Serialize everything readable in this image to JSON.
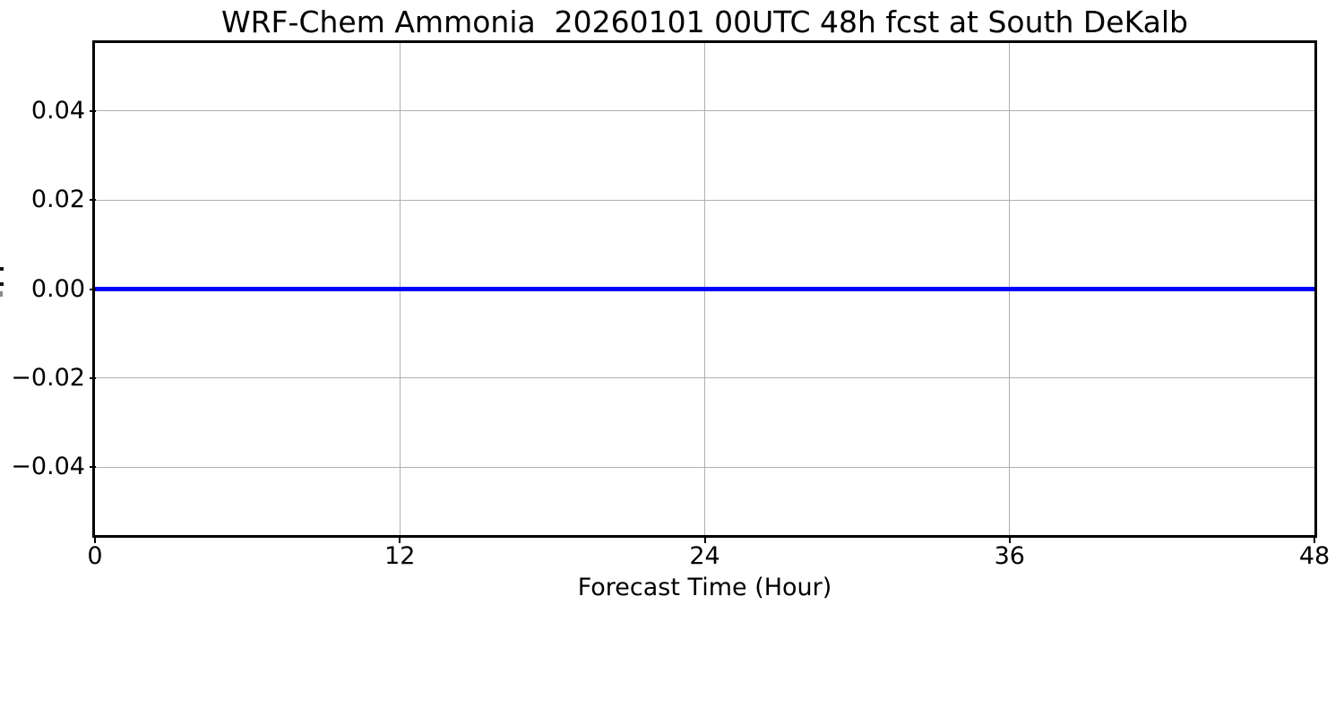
{
  "figure": {
    "background_color": "#ffffff"
  },
  "chart_data": {
    "type": "line",
    "title": "WRF-Chem Ammonia  20260101 00UTC 48h fcst at South DeKalb",
    "xlabel": "Forecast Time (Hour)",
    "ylabel": "",
    "x": [
      0,
      48
    ],
    "y": [
      0.0,
      0.0
    ],
    "xlim": [
      0,
      48
    ],
    "ylim": [
      -0.0553,
      0.0553
    ],
    "xticks": [
      0,
      12,
      24,
      36,
      48
    ],
    "xtick_labels": [
      "0",
      "12",
      "24",
      "36",
      "48"
    ],
    "yticks": [
      0.04,
      0.02,
      0.0,
      -0.02,
      -0.04
    ],
    "ytick_labels": [
      "0.04",
      "0.02",
      "0.00",
      "−0.02",
      "−0.04"
    ],
    "grid": true,
    "legend": false,
    "line_color": "#0000ff",
    "grid_color": "#b0b0b0",
    "axis_color": "#000000",
    "text_color": "#000000"
  }
}
